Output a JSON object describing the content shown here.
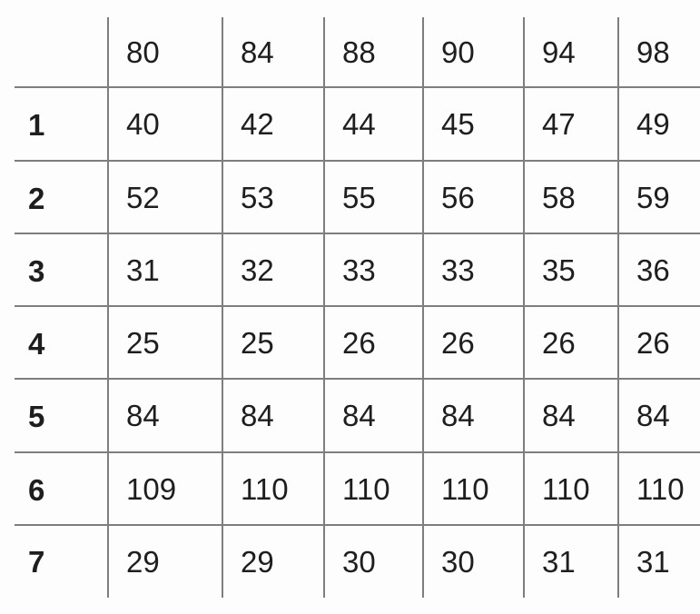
{
  "chart_data": {
    "type": "table",
    "columns": [
      "80",
      "84",
      "88",
      "90",
      "94",
      "98"
    ],
    "rows": [
      {
        "label": "1",
        "values": [
          "40",
          "42",
          "44",
          "45",
          "47",
          "49"
        ]
      },
      {
        "label": "2",
        "values": [
          "52",
          "53",
          "55",
          "56",
          "58",
          "59"
        ]
      },
      {
        "label": "3",
        "values": [
          "31",
          "32",
          "33",
          "33",
          "35",
          "36"
        ]
      },
      {
        "label": "4",
        "values": [
          "25",
          "25",
          "26",
          "26",
          "26",
          "26"
        ]
      },
      {
        "label": "5",
        "values": [
          "84",
          "84",
          "84",
          "84",
          "84",
          "84"
        ]
      },
      {
        "label": "6",
        "values": [
          "109",
          "110",
          "110",
          "110",
          "110",
          "110"
        ]
      },
      {
        "label": "7",
        "values": [
          "29",
          "29",
          "30",
          "30",
          "31",
          "31"
        ]
      }
    ],
    "title": "",
    "legend": "none",
    "grid": "on"
  },
  "style": {
    "border_color": "#7e7e7e",
    "text_color": "#1e1e1e",
    "background_color": "#fdfdfd"
  }
}
